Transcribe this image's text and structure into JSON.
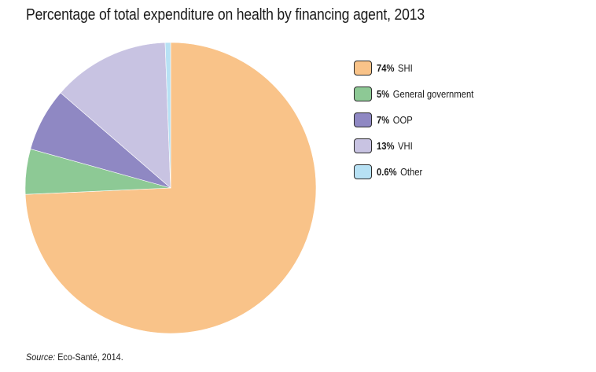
{
  "chart_data": {
    "type": "pie",
    "title": "Percentage of total expenditure on health by financing agent, 2013",
    "legend_placement": "right",
    "series": [
      {
        "value_label": "74%",
        "name": "SHI",
        "value": 74.0,
        "color": "#f9c389"
      },
      {
        "value_label": "5%",
        "name": "General government",
        "value": 5.0,
        "color": "#8dc995"
      },
      {
        "value_label": "7%",
        "name": "OOP",
        "value": 7.0,
        "color": "#8f88c3"
      },
      {
        "value_label": "13%",
        "name": "VHI",
        "value": 13.0,
        "color": "#c8c3e2"
      },
      {
        "value_label": "0.6%",
        "name": "Other",
        "value": 0.6,
        "color": "#b7e1f4"
      }
    ]
  },
  "source": {
    "label": "Source:",
    "text": "Eco-Santé, 2014."
  }
}
